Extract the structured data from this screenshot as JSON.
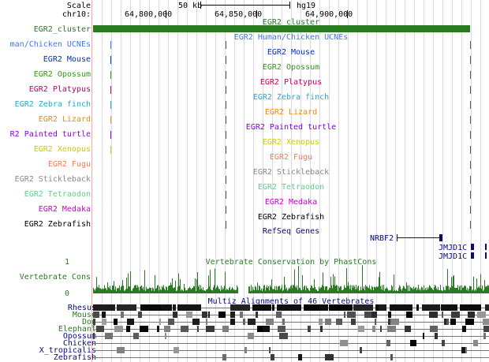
{
  "ruler": {
    "scale_label": "Scale",
    "scale_value": "50 kb",
    "assembly": "hg19",
    "chrom_label": "chr10:",
    "positions": [
      "64,800,000",
      "64,850,000",
      "64,900,000"
    ]
  },
  "cluster": {
    "label": "EGR2_cluster",
    "title": "EGR2_cluster",
    "color": "#2a7a22"
  },
  "ucne_tracks": [
    {
      "label": "man/Chicken UCNEs",
      "title": "EGR2 Human/Chicken UCNEs",
      "color": "#4477ee"
    },
    {
      "label": "EGR2 Mouse",
      "title": "EGR2 Mouse",
      "color": "#0033bb"
    },
    {
      "label": "EGR2 Opossum",
      "title": "EGR2 Opossum",
      "color": "#339911"
    },
    {
      "label": "EGR2 Platypus",
      "title": "EGR2 Platypus",
      "color": "#cc0055"
    },
    {
      "label": "EGR2 Zebra finch",
      "title": "EGR2 Zebra finch",
      "color": "#22aacc"
    },
    {
      "label": "EGR2 Lizard",
      "title": "EGR2 Lizard",
      "color": "#ee8811"
    },
    {
      "label": "R2 Painted turtle",
      "title": "EGR2 Painted turtle",
      "color": "#8800ee"
    },
    {
      "label": "EGR2 Xenopus",
      "title": "EGR2 Xenopus",
      "color": "#cccc00"
    },
    {
      "label": "EGR2 Fugu",
      "title": "EGR2 Fugu",
      "color": "#ff7755"
    },
    {
      "label": "EGR2 Stickleback",
      "title": "EGR2 Stickleback",
      "color": "#888888"
    },
    {
      "label": "EGR2 Tetraodon",
      "title": "EGR2 Tetraodon",
      "color": "#66cc88"
    },
    {
      "label": "EGR2 Medaka",
      "title": "EGR2 Medaka",
      "color": "#cc00cc"
    },
    {
      "label": "EGR2 Zebrafish",
      "title": "EGR2 Zebrafish",
      "color": "#000000"
    }
  ],
  "refseq": {
    "title": "RefSeq Genes",
    "genes": [
      "NRBF2",
      "JMJD1C",
      "JMJD1C"
    ],
    "color": "#0a0a78"
  },
  "conservation": {
    "label": "Vertebrate Cons",
    "title": "Vertebrate Conservation by PhastCons",
    "ymax": "1",
    "ymin": "0",
    "color": "#2a7a22"
  },
  "multiz": {
    "title": "Multiz Alignments of 46 Vertebrates",
    "species": [
      {
        "name": "Rhesus",
        "color": "#0a0a78"
      },
      {
        "name": "Mouse",
        "color": "#2a7a22"
      },
      {
        "name": "Dog",
        "color": "#2a7a22"
      },
      {
        "name": "Elephant",
        "color": "#2a7a22"
      },
      {
        "name": "Opossum",
        "color": "#0a0a78"
      },
      {
        "name": "Chicken",
        "color": "#0a0a78"
      },
      {
        "name": "X_tropicalis",
        "color": "#0a0a78"
      },
      {
        "name": "Zebrafish",
        "color": "#0a0a78"
      }
    ]
  }
}
